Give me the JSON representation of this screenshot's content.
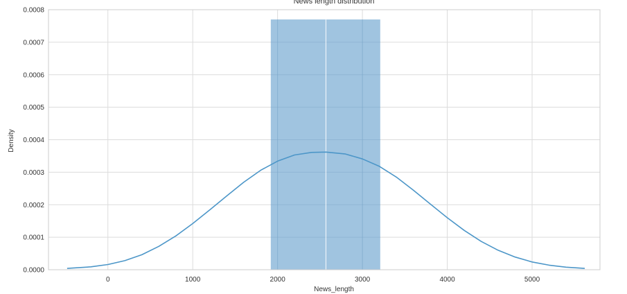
{
  "chart_data": {
    "type": "histogram",
    "title": "News length distribution",
    "xlabel": "News_length",
    "ylabel": "Density",
    "xlim": [
      -700,
      5800
    ],
    "ylim": [
      0,
      0.0008
    ],
    "x_ticks": [
      0,
      1000,
      2000,
      3000,
      4000,
      5000
    ],
    "x_tick_labels": [
      "0",
      "1000",
      "2000",
      "3000",
      "4000",
      "5000"
    ],
    "y_ticks": [
      0,
      0.0001,
      0.0002,
      0.0003,
      0.0004,
      0.0005,
      0.0006,
      0.0007,
      0.0008
    ],
    "y_tick_labels": [
      "0.0000",
      "0.0001",
      "0.0002",
      "0.0003",
      "0.0004",
      "0.0005",
      "0.0006",
      "0.0007",
      "0.0008"
    ],
    "grid": true,
    "bars": [
      {
        "x0": 1920,
        "x1": 2570,
        "density": 0.00077
      },
      {
        "x0": 2570,
        "x1": 3210,
        "density": 0.00077
      }
    ],
    "kde": {
      "x": [
        -480,
        -200,
        0,
        200,
        400,
        600,
        800,
        1000,
        1200,
        1400,
        1600,
        1800,
        2000,
        2200,
        2400,
        2570,
        2800,
        3000,
        3200,
        3400,
        3600,
        3800,
        4000,
        4200,
        4400,
        4600,
        4800,
        5000,
        5200,
        5400,
        5620
      ],
      "y": [
        4e-06,
        9e-06,
        1.6e-05,
        2.8e-05,
        4.6e-05,
        7.2e-05,
        0.000104,
        0.000142,
        0.000184,
        0.000227,
        0.000269,
        0.000306,
        0.000334,
        0.000353,
        0.000361,
        0.000362,
        0.000356,
        0.000341,
        0.000318,
        0.000285,
        0.000245,
        0.000202,
        0.00016,
        0.000121,
        8.7e-05,
        6e-05,
        3.9e-05,
        2.4e-05,
        1.4e-05,
        8e-06,
        4e-06
      ]
    },
    "colors": {
      "bar_fill": "#8fbadb",
      "kde_line": "#4c96c8",
      "grid": "#dcdcdc",
      "axes_edge": "#cccccc"
    }
  }
}
